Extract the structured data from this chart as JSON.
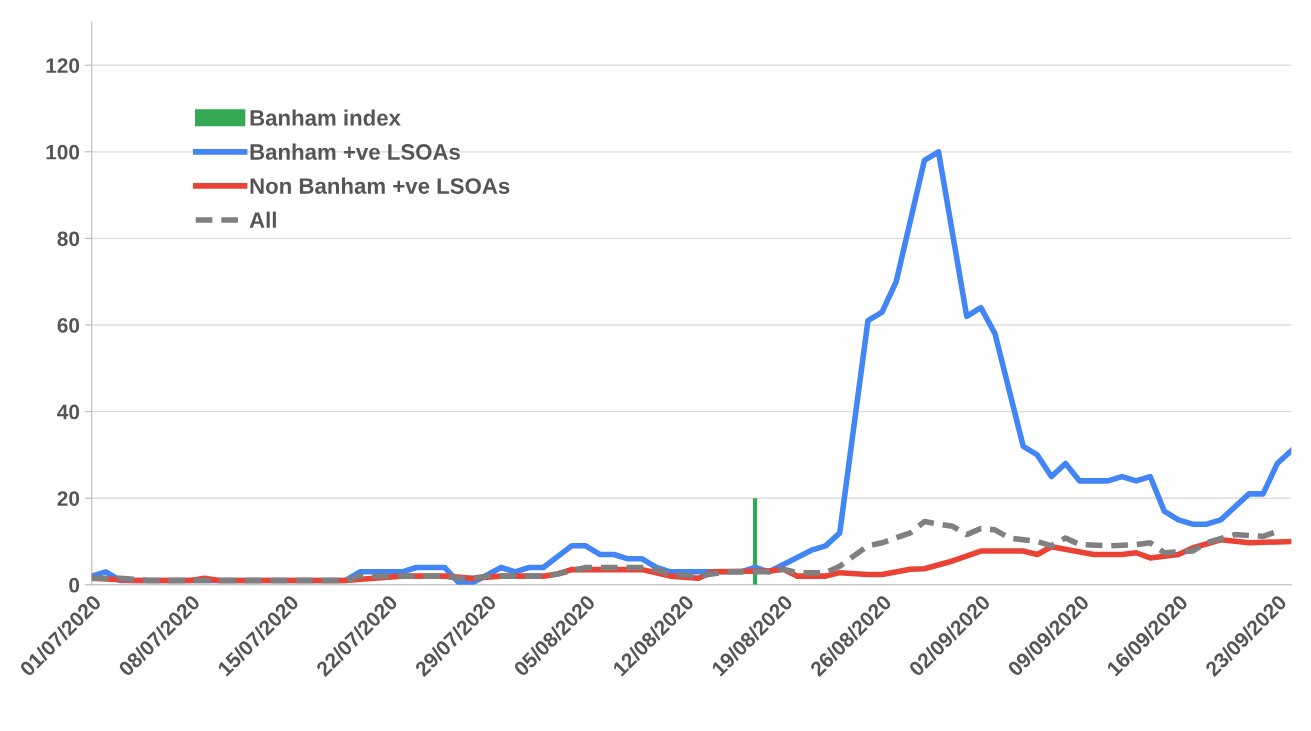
{
  "chart_data": {
    "type": "line",
    "grid": "y",
    "legend": "top left",
    "xlim": [
      "2020-07-01",
      "2020-09-24"
    ],
    "xticks": [
      {
        "value": "2020-07-01",
        "label": "01/07/2020"
      },
      {
        "value": "2020-07-08",
        "label": "08/07/2020"
      },
      {
        "value": "2020-07-15",
        "label": "15/07/2020"
      },
      {
        "value": "2020-07-22",
        "label": "22/07/2020"
      },
      {
        "value": "2020-07-29",
        "label": "29/07/2020"
      },
      {
        "value": "2020-08-05",
        "label": "05/08/2020"
      },
      {
        "value": "2020-08-12",
        "label": "12/08/2020"
      },
      {
        "value": "2020-08-19",
        "label": "19/08/2020"
      },
      {
        "value": "2020-08-26",
        "label": "26/08/2020"
      },
      {
        "value": "2020-09-02",
        "label": "02/09/2020"
      },
      {
        "value": "2020-09-09",
        "label": "09/09/2020"
      },
      {
        "value": "2020-09-16",
        "label": "16/09/2020"
      },
      {
        "value": "2020-09-23",
        "label": "23/09/2020"
      }
    ],
    "ylim": [
      0,
      130
    ],
    "yticks": [
      0,
      20,
      40,
      60,
      80,
      100,
      120
    ],
    "series": [
      {
        "name": "Banham index",
        "type": "bar",
        "color": "#34a853",
        "x": [
          "2020-08-17"
        ],
        "values": [
          20
        ]
      },
      {
        "name": "Banham +ve LSOAs",
        "color": "#4285f4",
        "line_style": "solid",
        "x": [
          "2020-07-01",
          "2020-07-02",
          "2020-07-03",
          "2020-07-19",
          "2020-07-20",
          "2020-07-23",
          "2020-07-24",
          "2020-07-26",
          "2020-07-27",
          "2020-07-28",
          "2020-07-30",
          "2020-07-31",
          "2020-08-01",
          "2020-08-02",
          "2020-08-04",
          "2020-08-05",
          "2020-08-06",
          "2020-08-07",
          "2020-08-08",
          "2020-08-09",
          "2020-08-10",
          "2020-08-11",
          "2020-08-16",
          "2020-08-17",
          "2020-08-18",
          "2020-08-21",
          "2020-08-22",
          "2020-08-23",
          "2020-08-25",
          "2020-08-26",
          "2020-08-27",
          "2020-08-29",
          "2020-08-30",
          "2020-09-01",
          "2020-09-02",
          "2020-09-03",
          "2020-09-05",
          "2020-09-06",
          "2020-09-07",
          "2020-09-08",
          "2020-09-09",
          "2020-09-11",
          "2020-09-12",
          "2020-09-13",
          "2020-09-14",
          "2020-09-15",
          "2020-09-16",
          "2020-09-17",
          "2020-09-18",
          "2020-09-19",
          "2020-09-21",
          "2020-09-22",
          "2020-09-23",
          "2020-09-24"
        ],
        "values": [
          2,
          3,
          1,
          1,
          3,
          3,
          4,
          4,
          0.5,
          0.5,
          4,
          3,
          4,
          4,
          9,
          9,
          7,
          7,
          6,
          6,
          4,
          3,
          3,
          4,
          3,
          8,
          9,
          12,
          61,
          63,
          70,
          98,
          100,
          62,
          64,
          58,
          32,
          30,
          25,
          28,
          24,
          24,
          25,
          24,
          25,
          17,
          15,
          14,
          14,
          15,
          21,
          21,
          28,
          31
        ]
      },
      {
        "name": "Non Banham +ve LSOAs",
        "color": "#ea4335",
        "line_style": "solid",
        "x": [
          "2020-07-01",
          "2020-07-04",
          "2020-07-08",
          "2020-07-09",
          "2020-07-10",
          "2020-07-19",
          "2020-07-21",
          "2020-07-23",
          "2020-07-26",
          "2020-07-28",
          "2020-07-30",
          "2020-08-02",
          "2020-08-03",
          "2020-08-04",
          "2020-08-06",
          "2020-08-09",
          "2020-08-11",
          "2020-08-13",
          "2020-08-14",
          "2020-08-18",
          "2020-08-19",
          "2020-08-20",
          "2020-08-22",
          "2020-08-23",
          "2020-08-25",
          "2020-08-26",
          "2020-08-28",
          "2020-08-29",
          "2020-08-31",
          "2020-09-02",
          "2020-09-05",
          "2020-09-06",
          "2020-09-07",
          "2020-09-10",
          "2020-09-12",
          "2020-09-13",
          "2020-09-14",
          "2020-09-16",
          "2020-09-17",
          "2020-09-19",
          "2020-09-21",
          "2020-09-24"
        ],
        "values": [
          1.5,
          1,
          1,
          1.5,
          1,
          1,
          1.5,
          2,
          2,
          1.5,
          2,
          2,
          2.5,
          3.5,
          3.5,
          3.5,
          2,
          1.5,
          3,
          3.2,
          3.6,
          2,
          2,
          2.8,
          2.4,
          2.4,
          3.6,
          3.7,
          5.5,
          7.8,
          7.8,
          7,
          8.8,
          7,
          7,
          7.4,
          6.2,
          7,
          8.5,
          10.4,
          9.7,
          10
        ]
      },
      {
        "name": "All",
        "color": "#808080",
        "line_style": "dashed",
        "x": [
          "2020-07-01",
          "2020-07-03",
          "2020-07-05",
          "2020-07-19",
          "2020-07-20",
          "2020-07-26",
          "2020-07-27",
          "2020-07-28",
          "2020-07-29",
          "2020-08-02",
          "2020-08-03",
          "2020-08-05",
          "2020-08-09",
          "2020-08-10",
          "2020-08-11",
          "2020-08-13",
          "2020-08-15",
          "2020-08-18",
          "2020-08-19",
          "2020-08-20",
          "2020-08-22",
          "2020-08-23",
          "2020-08-25",
          "2020-08-26",
          "2020-08-28",
          "2020-08-29",
          "2020-08-31",
          "2020-09-01",
          "2020-09-02",
          "2020-09-03",
          "2020-09-04",
          "2020-09-06",
          "2020-09-07",
          "2020-09-08",
          "2020-09-09",
          "2020-09-11",
          "2020-09-13",
          "2020-09-14",
          "2020-09-15",
          "2020-09-17",
          "2020-09-18",
          "2020-09-20",
          "2020-09-22",
          "2020-09-23"
        ],
        "values": [
          1.5,
          1.5,
          1,
          1,
          2,
          2,
          1.5,
          1.5,
          2,
          2,
          2.5,
          4,
          4,
          3.5,
          2.5,
          2,
          3,
          3,
          3.6,
          2.8,
          2.8,
          4.3,
          9,
          9.7,
          12,
          14.6,
          13.5,
          11.6,
          13,
          12.7,
          10.8,
          10,
          9,
          10.8,
          9.3,
          9,
          9.3,
          9.7,
          7.4,
          7.8,
          9.7,
          11.6,
          11.2,
          12.3
        ]
      }
    ]
  }
}
